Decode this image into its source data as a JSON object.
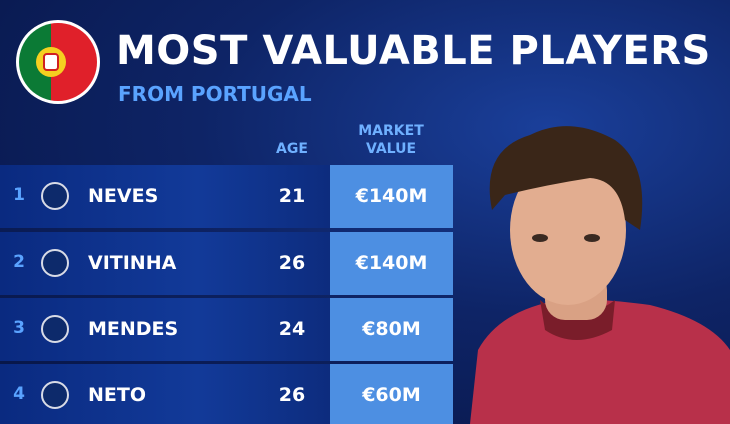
{
  "header": {
    "title": "MOST VALUABLE PLAYERS",
    "subtitle": "FROM PORTUGAL"
  },
  "table": {
    "columns": [
      "AGE",
      "MARKET VALUE"
    ],
    "rows": [
      {
        "rank": "1",
        "name": "NEVES",
        "age": "21",
        "value": "€140M"
      },
      {
        "rank": "2",
        "name": "VITINHA",
        "age": "26",
        "value": "€140M"
      },
      {
        "rank": "3",
        "name": "MENDES",
        "age": "24",
        "value": "€80M"
      },
      {
        "rank": "4",
        "name": "NETO",
        "age": "26",
        "value": "€60M"
      }
    ]
  }
}
